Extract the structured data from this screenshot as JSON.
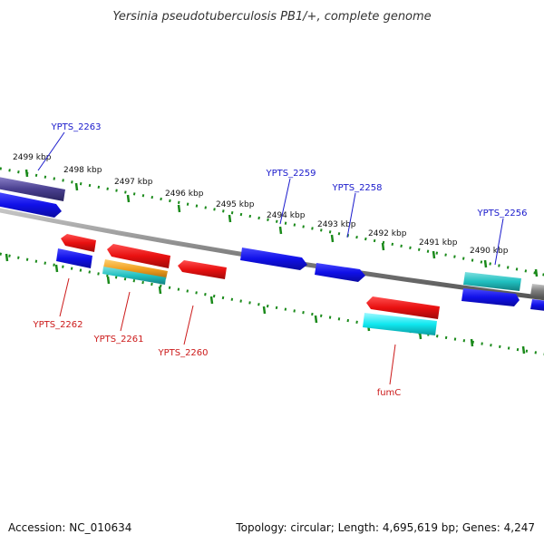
{
  "title": "Yersinia pseudotuberculosis PB1/+, complete genome",
  "footer": {
    "accession": "Accession: NC_010634",
    "summary": "Topology: circular; Length: 4,695,619 bp; Genes: 4,247"
  },
  "scale_labels": [
    "2499 kbp",
    "2498 kbp",
    "2497 kbp",
    "2496 kbp",
    "2495 kbp",
    "2494 kbp",
    "2493 kbp",
    "2492 kbp",
    "2491 kbp",
    "2490 kbp"
  ],
  "gene_labels": {
    "forward": [
      "YPTS_2263",
      "YPTS_2259",
      "YPTS_2258",
      "YPTS_2256"
    ],
    "reverse": [
      "YPTS_2262",
      "YPTS_2261",
      "YPTS_2260",
      "fumC"
    ]
  },
  "colors": {
    "forward_label": "#1a1acc",
    "reverse_label": "#cc1a1a",
    "cds_forward": "#1010e8",
    "cds_reverse": "#e81010",
    "gene_teal": "#20c0c0",
    "gene_cyan": "#10e8f0",
    "gene_orange": "#f0a020",
    "gene_slate": "#4a4090",
    "backbone": "#808080",
    "tick_green": "#1a8a1a"
  }
}
